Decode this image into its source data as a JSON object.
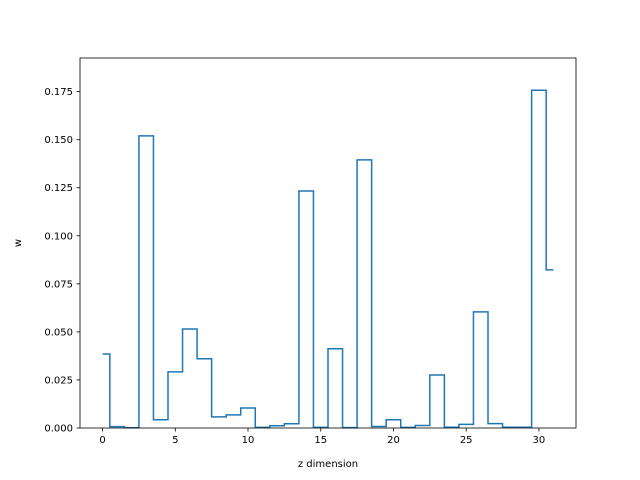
{
  "chart_data": {
    "type": "line",
    "drawstyle": "steps-mid",
    "title": "",
    "xlabel": "z dimension",
    "ylabel": "w",
    "xlim": [
      -1.55,
      32.55
    ],
    "ylim": [
      0,
      0.1925
    ],
    "xticks": [
      0,
      5,
      10,
      15,
      20,
      25,
      30
    ],
    "xtick_labels": [
      "0",
      "5",
      "10",
      "15",
      "20",
      "25",
      "30"
    ],
    "yticks": [
      0,
      0.025,
      0.05,
      0.075,
      0.1,
      0.125,
      0.15,
      0.175
    ],
    "ytick_labels": [
      "0.000",
      "0.025",
      "0.050",
      "0.075",
      "0.100",
      "0.125",
      "0.150",
      "0.175"
    ],
    "grid": false,
    "color": "#1f77b4",
    "series": [
      {
        "x": [
          0,
          1,
          2,
          3,
          4,
          5,
          6,
          7,
          8,
          9,
          10,
          11,
          12,
          13,
          14,
          15,
          16,
          17,
          18,
          19,
          20,
          21,
          22,
          23,
          24,
          25,
          26,
          27,
          28,
          29,
          30,
          31
        ],
        "values": [
          0.0385,
          0.0007,
          0.0001,
          0.152,
          0.0043,
          0.0292,
          0.0515,
          0.036,
          0.0058,
          0.0068,
          0.0104,
          0.0003,
          0.0012,
          0.0022,
          0.1233,
          0.0003,
          0.0412,
          0.0002,
          0.1395,
          0.0008,
          0.0043,
          0.0003,
          0.0013,
          0.0276,
          0.0004,
          0.0019,
          0.0604,
          0.0023,
          0.0004,
          0.0004,
          0.1757,
          0.0823
        ]
      }
    ]
  }
}
